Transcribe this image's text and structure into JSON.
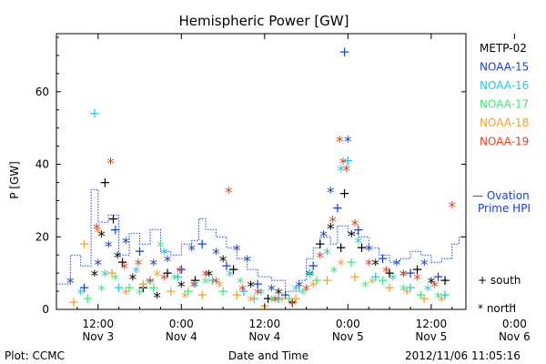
{
  "chart_data": {
    "type": "scatter",
    "title": "Hemispheric Power [GW]",
    "xlabel": "Date and Time",
    "ylabel": "P [GW]",
    "ylim": [
      0,
      76
    ],
    "xlim_hours": [
      6,
      65
    ],
    "yticks": [
      0,
      20,
      40,
      60
    ],
    "xticks": [
      {
        "line1": "12:00",
        "line2": "Nov 3"
      },
      {
        "line1": "0:00",
        "line2": "Nov 4"
      },
      {
        "line1": "12:00",
        "line2": "Nov 4"
      },
      {
        "line1": "0:00",
        "line2": "Nov 5"
      },
      {
        "line1": "12:00",
        "line2": "Nov 5"
      },
      {
        "line1": "0:00",
        "line2": "Nov 6"
      }
    ],
    "legend_placement": "right",
    "marker_legend": [
      {
        "symbol": "+",
        "label": "south"
      },
      {
        "symbol": "*",
        "label": "north"
      }
    ],
    "ovation_label": [
      "— Ovation",
      "Prime HPI"
    ],
    "ovation_color": "#1a3fd0",
    "series": [
      {
        "name": "METP-02",
        "color": "#000000",
        "points": [
          {
            "x": 13.0,
            "y": 35,
            "m": "+"
          },
          {
            "x": 14.2,
            "y": 25,
            "m": "+"
          },
          {
            "x": 12.5,
            "y": 20,
            "m": "*"
          },
          {
            "x": 14.8,
            "y": 14,
            "m": "*"
          },
          {
            "x": 11.5,
            "y": 9,
            "m": "*"
          },
          {
            "x": 15.5,
            "y": 13,
            "m": "+"
          },
          {
            "x": 17,
            "y": 8,
            "m": "*"
          },
          {
            "x": 18.5,
            "y": 6,
            "m": "+"
          },
          {
            "x": 20.5,
            "y": 3,
            "m": "*"
          },
          {
            "x": 22,
            "y": 10,
            "m": "+"
          },
          {
            "x": 24,
            "y": 6,
            "m": "*"
          },
          {
            "x": 26,
            "y": 8,
            "m": "+"
          },
          {
            "x": 28,
            "y": 9,
            "m": "*"
          },
          {
            "x": 30,
            "y": 13,
            "m": "*"
          },
          {
            "x": 31.5,
            "y": 11,
            "m": "+"
          },
          {
            "x": 34,
            "y": 6,
            "m": "*"
          },
          {
            "x": 36.5,
            "y": 3,
            "m": "+"
          },
          {
            "x": 38,
            "y": 4,
            "m": "*"
          },
          {
            "x": 40,
            "y": 2,
            "m": "+"
          },
          {
            "x": 42.5,
            "y": 9,
            "m": "*"
          },
          {
            "x": 44,
            "y": 18,
            "m": "+"
          },
          {
            "x": 45.5,
            "y": 22,
            "m": "*"
          },
          {
            "x": 47,
            "y": 17,
            "m": "+"
          },
          {
            "x": 47.5,
            "y": 32,
            "m": "+"
          },
          {
            "x": 48.5,
            "y": 20,
            "m": "*"
          },
          {
            "x": 50,
            "y": 17,
            "m": "+"
          },
          {
            "x": 52,
            "y": 12,
            "m": "*"
          },
          {
            "x": 54,
            "y": 10,
            "m": "+"
          },
          {
            "x": 56,
            "y": 9,
            "m": "*"
          },
          {
            "x": 58,
            "y": 11,
            "m": "+"
          },
          {
            "x": 60,
            "y": 7,
            "m": "*"
          },
          {
            "x": 62,
            "y": 8,
            "m": "+"
          }
        ]
      },
      {
        "name": "NOAA-15",
        "color": "#1a3fd0",
        "points": [
          {
            "x": 8,
            "y": 7,
            "m": "*"
          },
          {
            "x": 10,
            "y": 6,
            "m": "+"
          },
          {
            "x": 12,
            "y": 12,
            "m": "*"
          },
          {
            "x": 13.5,
            "y": 17,
            "m": "*"
          },
          {
            "x": 14.5,
            "y": 22,
            "m": "+"
          },
          {
            "x": 16,
            "y": 18,
            "m": "*"
          },
          {
            "x": 18,
            "y": 16,
            "m": "+"
          },
          {
            "x": 20,
            "y": 12,
            "m": "*"
          },
          {
            "x": 22,
            "y": 13,
            "m": "*"
          },
          {
            "x": 24,
            "y": 11,
            "m": "+"
          },
          {
            "x": 25.5,
            "y": 16,
            "m": "*"
          },
          {
            "x": 27,
            "y": 18,
            "m": "+"
          },
          {
            "x": 29,
            "y": 15,
            "m": "*"
          },
          {
            "x": 30.5,
            "y": 12,
            "m": "+"
          },
          {
            "x": 32,
            "y": 16,
            "m": "*"
          },
          {
            "x": 33.5,
            "y": 13,
            "m": "*"
          },
          {
            "x": 35,
            "y": 7,
            "m": "+"
          },
          {
            "x": 37,
            "y": 5,
            "m": "*"
          },
          {
            "x": 39,
            "y": 4,
            "m": "+"
          },
          {
            "x": 41,
            "y": 6,
            "m": "*"
          },
          {
            "x": 43,
            "y": 12,
            "m": "+"
          },
          {
            "x": 44.5,
            "y": 20,
            "m": "*"
          },
          {
            "x": 45.5,
            "y": 32,
            "m": "*"
          },
          {
            "x": 46.5,
            "y": 28,
            "m": "+"
          },
          {
            "x": 47.5,
            "y": 71,
            "m": "+"
          },
          {
            "x": 48,
            "y": 46,
            "m": "*"
          },
          {
            "x": 49.5,
            "y": 22,
            "m": "+"
          },
          {
            "x": 51,
            "y": 16,
            "m": "*"
          },
          {
            "x": 53,
            "y": 14,
            "m": "+"
          },
          {
            "x": 55,
            "y": 12,
            "m": "*"
          },
          {
            "x": 57,
            "y": 10,
            "m": "+"
          },
          {
            "x": 59,
            "y": 12,
            "m": "*"
          },
          {
            "x": 61,
            "y": 9,
            "m": "+"
          }
        ]
      },
      {
        "name": "NOAA-16",
        "color": "#22c8dc",
        "points": [
          {
            "x": 9.5,
            "y": 4,
            "m": "*"
          },
          {
            "x": 11.5,
            "y": 54,
            "m": "+"
          },
          {
            "x": 13,
            "y": 9,
            "m": "*"
          },
          {
            "x": 15,
            "y": 6,
            "m": "+"
          },
          {
            "x": 17.5,
            "y": 10,
            "m": "*"
          },
          {
            "x": 19.5,
            "y": 8,
            "m": "+"
          },
          {
            "x": 21.5,
            "y": 15,
            "m": "*"
          },
          {
            "x": 23.5,
            "y": 9,
            "m": "+"
          },
          {
            "x": 26,
            "y": 6,
            "m": "*"
          },
          {
            "x": 28.5,
            "y": 8,
            "m": "+"
          },
          {
            "x": 31,
            "y": 9,
            "m": "*"
          },
          {
            "x": 33,
            "y": 5,
            "m": "+"
          },
          {
            "x": 35.5,
            "y": 4,
            "m": "*"
          },
          {
            "x": 38,
            "y": 3,
            "m": "+"
          },
          {
            "x": 40.5,
            "y": 5,
            "m": "*"
          },
          {
            "x": 42.5,
            "y": 10,
            "m": "+"
          },
          {
            "x": 45,
            "y": 15,
            "m": "*"
          },
          {
            "x": 47,
            "y": 38,
            "m": "*"
          },
          {
            "x": 48,
            "y": 41,
            "m": "+"
          },
          {
            "x": 49.5,
            "y": 18,
            "m": "*"
          },
          {
            "x": 52,
            "y": 9,
            "m": "+"
          },
          {
            "x": 54.5,
            "y": 8,
            "m": "*"
          },
          {
            "x": 57,
            "y": 6,
            "m": "+"
          },
          {
            "x": 59.5,
            "y": 5,
            "m": "*"
          },
          {
            "x": 62,
            "y": 4,
            "m": "+"
          }
        ]
      },
      {
        "name": "NOAA-17",
        "color": "#3ee87a",
        "points": [
          {
            "x": 10.5,
            "y": 3,
            "m": "+"
          },
          {
            "x": 12.5,
            "y": 5,
            "m": "*"
          },
          {
            "x": 14.5,
            "y": 8,
            "m": "*"
          },
          {
            "x": 16.5,
            "y": 6,
            "m": "+"
          },
          {
            "x": 18,
            "y": 4,
            "m": "*"
          },
          {
            "x": 20,
            "y": 6,
            "m": "+"
          },
          {
            "x": 21,
            "y": 17,
            "m": "*"
          },
          {
            "x": 23,
            "y": 8,
            "m": "*"
          },
          {
            "x": 25,
            "y": 5,
            "m": "+"
          },
          {
            "x": 27.5,
            "y": 7,
            "m": "*"
          },
          {
            "x": 30,
            "y": 5,
            "m": "+"
          },
          {
            "x": 32.5,
            "y": 7,
            "m": "*"
          },
          {
            "x": 34.5,
            "y": 3,
            "m": "+"
          },
          {
            "x": 37,
            "y": 2,
            "m": "*"
          },
          {
            "x": 39.5,
            "y": 3,
            "m": "+"
          },
          {
            "x": 41.5,
            "y": 4,
            "m": "*"
          },
          {
            "x": 43.5,
            "y": 8,
            "m": "+"
          },
          {
            "x": 46,
            "y": 10,
            "m": "*"
          },
          {
            "x": 48.5,
            "y": 13,
            "m": "+"
          },
          {
            "x": 50.5,
            "y": 6,
            "m": "*"
          },
          {
            "x": 53,
            "y": 8,
            "m": "+"
          },
          {
            "x": 56,
            "y": 5,
            "m": "*"
          },
          {
            "x": 58.5,
            "y": 4,
            "m": "+"
          },
          {
            "x": 61,
            "y": 3,
            "m": "*"
          }
        ]
      },
      {
        "name": "NOAA-18",
        "color": "#f0a030",
        "points": [
          {
            "x": 8.5,
            "y": 2,
            "m": "+"
          },
          {
            "x": 10,
            "y": 18,
            "m": "+"
          },
          {
            "x": 12,
            "y": 21,
            "m": "*"
          },
          {
            "x": 14,
            "y": 10,
            "m": "+"
          },
          {
            "x": 16,
            "y": 4,
            "m": "*"
          },
          {
            "x": 18.5,
            "y": 7,
            "m": "+"
          },
          {
            "x": 20.5,
            "y": 9,
            "m": "*"
          },
          {
            "x": 22.5,
            "y": 5,
            "m": "+"
          },
          {
            "x": 24.5,
            "y": 3,
            "m": "*"
          },
          {
            "x": 27,
            "y": 4,
            "m": "+"
          },
          {
            "x": 29.5,
            "y": 6,
            "m": "*"
          },
          {
            "x": 32,
            "y": 4,
            "m": "+"
          },
          {
            "x": 34,
            "y": 2,
            "m": "*"
          },
          {
            "x": 36,
            "y": 1,
            "m": "+"
          },
          {
            "x": 38.5,
            "y": 2,
            "m": "*"
          },
          {
            "x": 40.5,
            "y": 3,
            "m": "+"
          },
          {
            "x": 43,
            "y": 6,
            "m": "*"
          },
          {
            "x": 45,
            "y": 8,
            "m": "+"
          },
          {
            "x": 47,
            "y": 12,
            "m": "*"
          },
          {
            "x": 49,
            "y": 9,
            "m": "+"
          },
          {
            "x": 51.5,
            "y": 7,
            "m": "*"
          },
          {
            "x": 54,
            "y": 6,
            "m": "+"
          },
          {
            "x": 56.5,
            "y": 4,
            "m": "*"
          },
          {
            "x": 59,
            "y": 3,
            "m": "+"
          },
          {
            "x": 61.5,
            "y": 2,
            "m": "*"
          }
        ]
      },
      {
        "name": "NOAA-19",
        "color": "#e8401a",
        "points": [
          {
            "x": 11.8,
            "y": 22,
            "m": "*"
          },
          {
            "x": 13.8,
            "y": 40,
            "m": "*"
          },
          {
            "x": 15.8,
            "y": 11,
            "m": "*"
          },
          {
            "x": 17.8,
            "y": 12,
            "m": "*"
          },
          {
            "x": 19.5,
            "y": 7,
            "m": "*"
          },
          {
            "x": 21.5,
            "y": 8,
            "m": "*"
          },
          {
            "x": 23.8,
            "y": 10,
            "m": "*"
          },
          {
            "x": 25.8,
            "y": 6,
            "m": "*"
          },
          {
            "x": 27.5,
            "y": 9,
            "m": "*"
          },
          {
            "x": 29,
            "y": 7,
            "m": "*"
          },
          {
            "x": 30.8,
            "y": 32,
            "m": "*"
          },
          {
            "x": 32.8,
            "y": 5,
            "m": "*"
          },
          {
            "x": 35,
            "y": 4,
            "m": "*"
          },
          {
            "x": 37.5,
            "y": 2,
            "m": "*"
          },
          {
            "x": 40,
            "y": 1,
            "m": "*"
          },
          {
            "x": 42,
            "y": 5,
            "m": "*"
          },
          {
            "x": 44,
            "y": 14,
            "m": "*"
          },
          {
            "x": 45.8,
            "y": 24,
            "m": "*"
          },
          {
            "x": 46.8,
            "y": 46,
            "m": "*"
          },
          {
            "x": 47.3,
            "y": 40,
            "m": "*"
          },
          {
            "x": 47.8,
            "y": 38,
            "m": "*"
          },
          {
            "x": 49,
            "y": 23,
            "m": "*"
          },
          {
            "x": 51,
            "y": 12,
            "m": "*"
          },
          {
            "x": 53.5,
            "y": 10,
            "m": "*"
          },
          {
            "x": 56,
            "y": 9,
            "m": "*"
          },
          {
            "x": 58,
            "y": 8,
            "m": "*"
          },
          {
            "x": 60.5,
            "y": 6,
            "m": "*"
          },
          {
            "x": 63,
            "y": 28,
            "m": "*"
          }
        ]
      }
    ],
    "ovation_steps": [
      [
        6,
        7
      ],
      [
        8,
        15
      ],
      [
        9.5,
        12
      ],
      [
        11,
        33
      ],
      [
        12,
        24
      ],
      [
        13.5,
        26
      ],
      [
        15,
        15
      ],
      [
        16.5,
        21
      ],
      [
        18,
        18
      ],
      [
        19.5,
        22
      ],
      [
        21,
        16
      ],
      [
        22.5,
        15
      ],
      [
        24,
        18
      ],
      [
        25.5,
        19
      ],
      [
        26.5,
        25
      ],
      [
        27.5,
        22
      ],
      [
        29,
        20
      ],
      [
        30.5,
        17
      ],
      [
        32,
        14
      ],
      [
        33.5,
        11
      ],
      [
        35,
        9
      ],
      [
        37,
        8
      ],
      [
        39,
        5
      ],
      [
        41,
        8
      ],
      [
        42,
        14
      ],
      [
        43,
        17
      ],
      [
        44,
        20
      ],
      [
        45.5,
        18
      ],
      [
        46.5,
        23
      ],
      [
        48,
        21
      ],
      [
        49.5,
        20
      ],
      [
        51,
        17
      ],
      [
        52.5,
        15
      ],
      [
        54,
        13
      ],
      [
        55.5,
        14
      ],
      [
        57,
        16
      ],
      [
        58.5,
        15
      ],
      [
        60,
        13
      ],
      [
        61.5,
        14
      ],
      [
        63,
        18
      ],
      [
        64,
        20
      ]
    ]
  },
  "footer": {
    "left": "Plot: CCMC",
    "right": "2012/11/06 11:05:16"
  }
}
